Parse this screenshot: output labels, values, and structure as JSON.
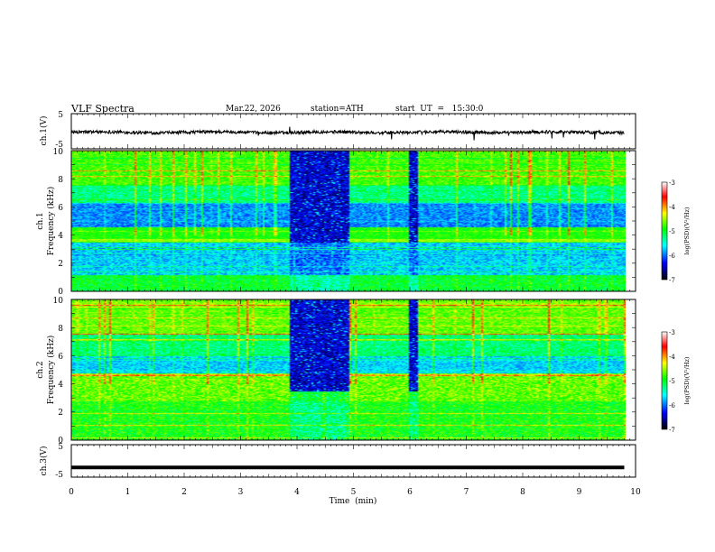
{
  "header": {
    "title": "VLF  Spectra",
    "date": "Mar.22, 2026",
    "station": "station=ATH",
    "start": "start  UT  =   15:30:0"
  },
  "chart_data": [
    {
      "type": "line",
      "ylabel": "ch.1(V)",
      "ylim": [
        -5,
        5
      ],
      "yticks": [
        "5",
        "-5"
      ],
      "xlim": [
        0,
        10
      ],
      "note": "waveform amplitude near -0.3 V with small fluctuations and occasional spikes"
    },
    {
      "type": "heatmap",
      "ylabel_channel": "ch.1",
      "ylabel": "Frequency (kHz)",
      "ylim": [
        0,
        10
      ],
      "yticks": [
        "0",
        "2",
        "4",
        "6",
        "8",
        "10"
      ],
      "xlim": [
        0,
        9.8
      ],
      "colorbar": {
        "label": "log(PSD)(V²/Hz)",
        "range": [
          -7,
          -3
        ],
        "ticks": [
          "-3",
          "-4",
          "-5",
          "-6",
          "-7"
        ],
        "colors": [
          "#000000",
          "#0000ff",
          "#00ffff",
          "#00ff00",
          "#ffff00",
          "#ff0000",
          "#ffffff"
        ]
      },
      "gap_intervals_min": [
        [
          3.85,
          4.9
        ],
        [
          5.95,
          6.1
        ]
      ]
    },
    {
      "type": "heatmap",
      "ylabel_channel": "ch.2",
      "ylabel": "Frequency (kHz)",
      "ylim": [
        0,
        10
      ],
      "yticks": [
        "0",
        "2",
        "4",
        "6",
        "8",
        "10"
      ],
      "xlim": [
        0,
        9.8
      ],
      "colorbar": {
        "label": "log(PSD)(V²/Hz)",
        "range": [
          -7,
          -3
        ],
        "ticks": [
          "-3",
          "-4",
          "-5",
          "-6",
          "-7"
        ],
        "colors": [
          "#000000",
          "#0000ff",
          "#00ffff",
          "#00ff00",
          "#ffff00",
          "#ff0000",
          "#ffffff"
        ]
      },
      "gap_intervals_min": [
        [
          3.85,
          4.9
        ],
        [
          5.95,
          6.1
        ]
      ]
    },
    {
      "type": "line",
      "ylabel": "ch.3(V)",
      "ylim": [
        -5,
        5
      ],
      "yticks": [
        "5",
        "-5"
      ],
      "xlim": [
        0,
        10
      ],
      "xlabel": "Time  (min)",
      "xticks": [
        "0",
        "1",
        "2",
        "3",
        "4",
        "5",
        "6",
        "7",
        "8",
        "9",
        "10"
      ],
      "note": "flat thick trace at about -2 V"
    }
  ]
}
